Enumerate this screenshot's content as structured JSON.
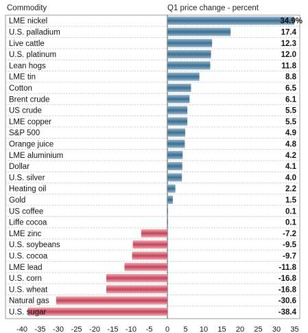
{
  "header": {
    "category_label": "Commodity",
    "value_label": "Q1 price change - percent"
  },
  "colors": {
    "positive_light": "#8fb3cc",
    "positive_dark": "#3f6f8f",
    "negative_light": "#f1a7b3",
    "negative_dark": "#c2455a"
  },
  "chart_data": {
    "type": "bar",
    "orientation": "horizontal",
    "title": "",
    "xlabel": "Q1 price change - percent",
    "ylabel": "Commodity",
    "xlim": [
      -40,
      35
    ],
    "grid": true,
    "x_ticks": [
      -40,
      -35,
      -30,
      -25,
      -20,
      -15,
      -10,
      -5,
      0,
      5,
      10,
      15,
      20,
      25,
      30,
      35
    ],
    "categories": [
      "LME nickel",
      "U.S. palladium",
      "Live cattle",
      "U.S. platinum",
      "Lean hogs",
      "LME tin",
      "Cotton",
      "Brent crude",
      "US crude",
      "LME copper",
      "S&P 500",
      "Orange juice",
      "LME aluminium",
      "Dollar",
      "U.S. silver",
      "Heating oil",
      "Gold",
      "US coffee",
      "Liffe cocoa",
      "LME zinc",
      "U.S. soybeans",
      "U.S. cocoa",
      "LME lead",
      "U.S. corn",
      "U.S. wheat",
      "Natural gas",
      "U.S. sugar"
    ],
    "values": [
      34.9,
      17.4,
      12.3,
      12.0,
      11.8,
      8.8,
      6.5,
      6.1,
      5.5,
      5.5,
      4.9,
      4.8,
      4.2,
      4.1,
      4.0,
      2.2,
      1.5,
      0.1,
      0.1,
      -7.2,
      -9.5,
      -9.7,
      -11.8,
      -16.8,
      -16.8,
      -30.6,
      -38.4
    ],
    "value_labels": [
      "34.9%",
      "17.4",
      "12.3",
      "12.0",
      "11.8",
      "8.8",
      "6.5",
      "6.1",
      "5.5",
      "5.5",
      "4.9",
      "4.8",
      "4.2",
      "4.1",
      "4.0",
      "2.2",
      "1.5",
      "0.1",
      "0.1",
      "-7.2",
      "-9.5",
      "-9.7",
      "-11.8",
      "-16.8",
      "-16.8",
      "-30.6",
      "-38.4"
    ]
  }
}
